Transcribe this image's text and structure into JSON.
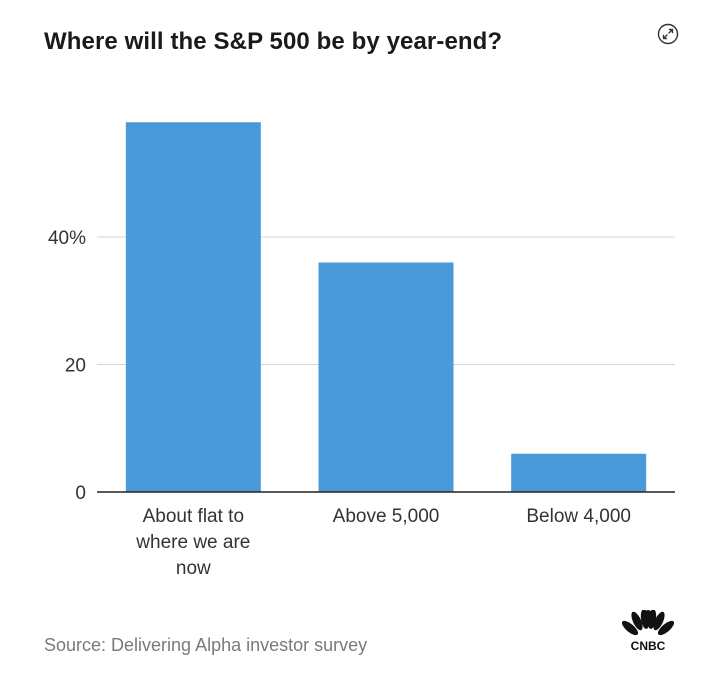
{
  "header": {
    "title": "Where will the S&P 500 be by year-end?"
  },
  "icons": {
    "expand": "expand-arrows-icon"
  },
  "footer": {
    "source": "Source: Delivering Alpha investor survey",
    "logo_text": "CNBC"
  },
  "colors": {
    "bar": "#4a9ad9",
    "grid": "#d6d6d6",
    "axis": "#222222"
  },
  "chart_data": {
    "type": "bar",
    "title": "Where will the S&P 500 be by year-end?",
    "categories": [
      [
        "About flat to",
        "where we are",
        "now"
      ],
      [
        "Above 5,000"
      ],
      [
        "Below 4,000"
      ]
    ],
    "values": [
      58,
      36,
      6
    ],
    "ylim": [
      0,
      60
    ],
    "yticks": [
      {
        "value": 0,
        "label": "0"
      },
      {
        "value": 20,
        "label": "20"
      },
      {
        "value": 40,
        "label": "40%"
      }
    ],
    "grid": true,
    "xlabel": "",
    "ylabel": ""
  }
}
